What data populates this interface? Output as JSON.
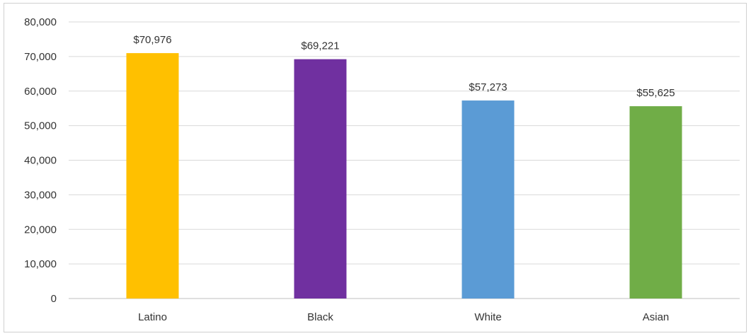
{
  "chart_data": {
    "type": "bar",
    "title": "",
    "xlabel": "",
    "ylabel": "",
    "categories": [
      "Latino",
      "Black",
      "White",
      "Asian"
    ],
    "values": [
      70976,
      69221,
      57273,
      55625
    ],
    "data_labels": [
      "$70,976",
      "$69,221",
      "$57,273",
      "$55,625"
    ],
    "colors": [
      "#FFC000",
      "#7030A0",
      "#5B9BD5",
      "#70AD47"
    ],
    "ylim": [
      0,
      80000
    ],
    "yticks": [
      0,
      10000,
      20000,
      30000,
      40000,
      50000,
      60000,
      70000,
      80000
    ],
    "ytick_labels": [
      "0",
      "10,000",
      "20,000",
      "30,000",
      "40,000",
      "50,000",
      "60,000",
      "70,000",
      "80,000"
    ],
    "grid": true,
    "legend": "none"
  }
}
